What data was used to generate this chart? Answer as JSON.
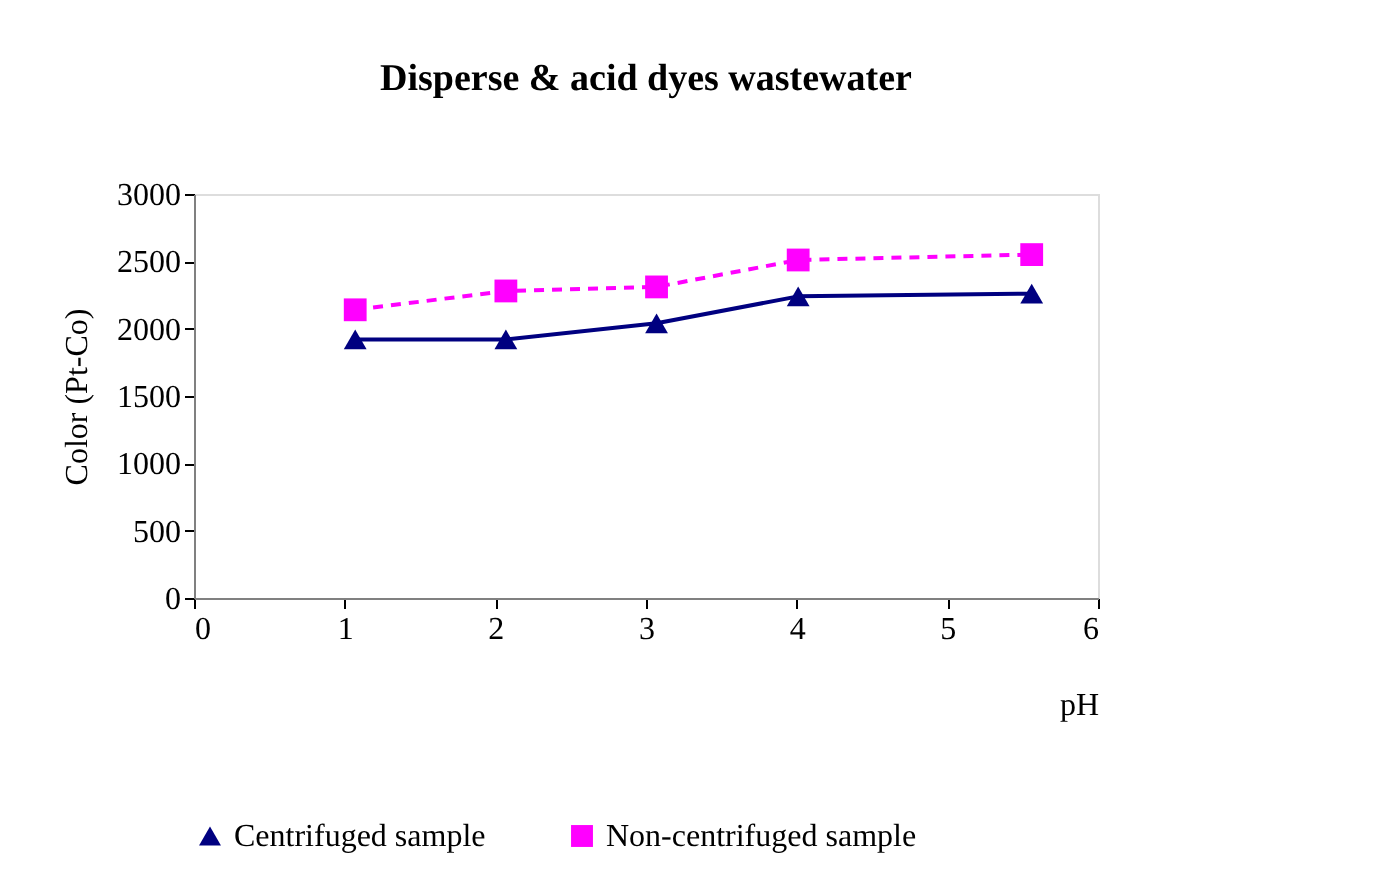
{
  "chart_data": {
    "type": "line",
    "title": "Disperse & acid dyes wastewater",
    "xlabel": "pH",
    "ylabel": "Color (Pt-Co)",
    "x": [
      1.07,
      2.07,
      3.07,
      4.01,
      5.56
    ],
    "series": [
      {
        "name": "Centrifuged sample",
        "color": "#000080",
        "marker": "triangle",
        "line_style": "solid",
        "values": [
          1920,
          1920,
          2040,
          2240,
          2260
        ]
      },
      {
        "name": "Non-centrifuged sample",
        "color": "#ff00ff",
        "marker": "square",
        "line_style": "dashed",
        "values": [
          2140,
          2280,
          2310,
          2510,
          2550
        ]
      }
    ],
    "xlim": [
      0,
      6
    ],
    "xticks": [
      0,
      1,
      2,
      3,
      4,
      5,
      6
    ],
    "ylim": [
      0,
      3000
    ],
    "yticks": [
      0,
      500,
      1000,
      1500,
      2000,
      2500,
      3000
    ],
    "grid": false,
    "legend": "bottom"
  }
}
